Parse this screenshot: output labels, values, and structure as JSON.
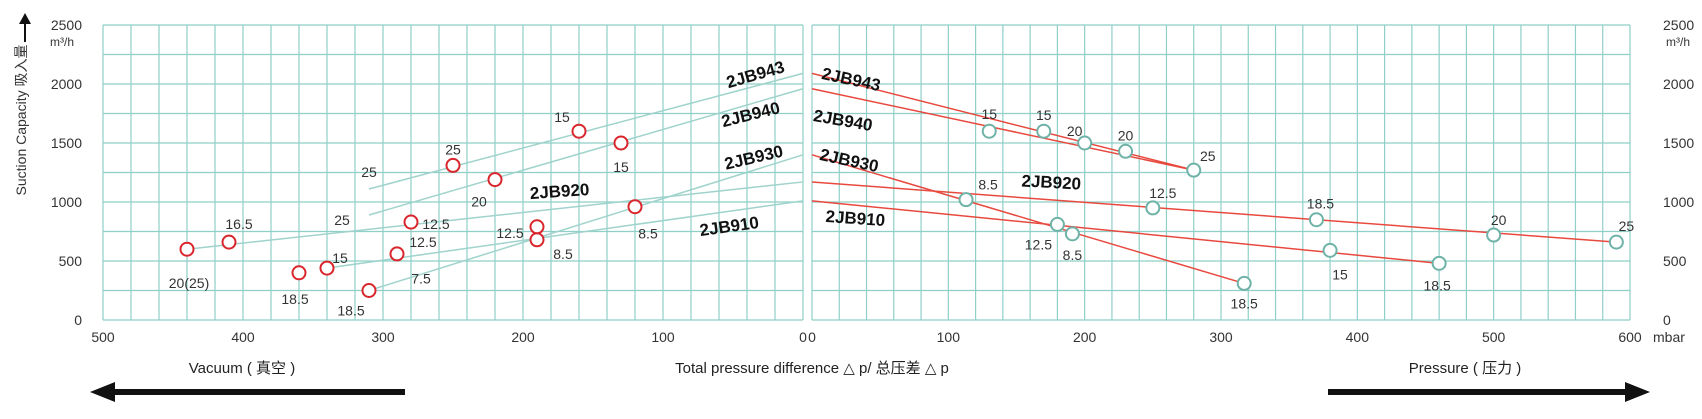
{
  "chart_data": {
    "type": "line",
    "colors": {
      "grid": "#8fcfc8",
      "vacuum_line": "#9fd3cc",
      "pressure_line": "#e8493f",
      "vacuum_marker": "#d9262c",
      "pressure_marker": "#6fb3a8",
      "arrow": "#111111"
    },
    "y_axis": {
      "label": "Suction Capacity 吸入量",
      "unit": "m³/h",
      "range": [
        0,
        2500
      ],
      "ticks": [
        "0",
        "500",
        "1000",
        "1500",
        "2000",
        "2500"
      ]
    },
    "x_axis_label": "Total pressure difference △ p/ 总压差 △ p",
    "vacuum_panel": {
      "label": "Vacuum ( 真空 )",
      "range": [
        500,
        0
      ],
      "ticks": [
        "500",
        "400",
        "300",
        "200",
        "100",
        "0"
      ],
      "series": [
        {
          "name": "2JB943",
          "x": [
            310,
            0
          ],
          "y": [
            1110,
            2090
          ],
          "markers": [
            {
              "x": 250,
              "y": 1310,
              "label": "25"
            },
            {
              "x": 160,
              "y": 1600,
              "label": "15"
            }
          ],
          "labels": [
            {
              "x": 310,
              "y": 1110,
              "label": "25"
            }
          ]
        },
        {
          "name": "2JB940",
          "x": [
            310,
            0
          ],
          "y": [
            890,
            1960
          ],
          "markers": [
            {
              "x": 220,
              "y": 1190,
              "label": "20"
            },
            {
              "x": 130,
              "y": 1500,
              "label": "15"
            }
          ],
          "labels": [
            {
              "x": 310,
              "y": 890,
              "label": "25"
            }
          ]
        },
        {
          "name": "2JB930",
          "x": [
            310,
            0
          ],
          "y": [
            250,
            1400
          ],
          "markers": [
            {
              "x": 310,
              "y": 250,
              "label": "18.5"
            },
            {
              "x": 190,
              "y": 680,
              "label": "8.5"
            },
            {
              "x": 120,
              "y": 960,
              "label": "8.5"
            }
          ],
          "labels": [
            {
              "x": 290,
              "y": 420,
              "label": "7.5"
            }
          ]
        },
        {
          "name": "2JB920",
          "x": [
            440,
            0
          ],
          "y": [
            600,
            1170
          ],
          "markers": [
            {
              "x": 440,
              "y": 600,
              "label": "20(25)"
            },
            {
              "x": 410,
              "y": 660,
              "label": "16.5"
            },
            {
              "x": 280,
              "y": 830,
              "label": "12.5"
            }
          ],
          "labels": []
        },
        {
          "name": "2JB910",
          "x": [
            340,
            0
          ],
          "y": [
            440,
            1010
          ],
          "markers": [
            {
              "x": 360,
              "y": 400,
              "label": "18.5"
            },
            {
              "x": 340,
              "y": 440,
              "label": "15"
            },
            {
              "x": 290,
              "y": 560,
              "label": "12.5"
            },
            {
              "x": 190,
              "y": 790,
              "label": "12.5"
            }
          ],
          "labels": []
        }
      ]
    },
    "pressure_panel": {
      "label": "Pressure ( 压力 )",
      "unit": "mbar",
      "range": [
        0,
        600
      ],
      "ticks": [
        "0",
        "100",
        "200",
        "300",
        "400",
        "500",
        "600"
      ],
      "series": [
        {
          "name": "2JB943",
          "x": [
            0,
            280
          ],
          "y": [
            2090,
            1270
          ],
          "markers": [
            {
              "x": 130,
              "y": 1600,
              "label": "15"
            },
            {
              "x": 200,
              "y": 1500,
              "label": "20"
            },
            {
              "x": 280,
              "y": 1270,
              "label": "25"
            }
          ]
        },
        {
          "name": "2JB940",
          "x": [
            0,
            280
          ],
          "y": [
            1960,
            1270
          ],
          "markers": [
            {
              "x": 170,
              "y": 1600,
              "label": "15"
            },
            {
              "x": 230,
              "y": 1430,
              "label": "20"
            }
          ]
        },
        {
          "name": "2JB930",
          "x": [
            0,
            317
          ],
          "y": [
            1400,
            310
          ],
          "markers": [
            {
              "x": 180,
              "y": 810,
              "label": "12.5"
            },
            {
              "x": 317,
              "y": 310,
              "label": "18.5"
            }
          ]
        },
        {
          "name": "2JB920",
          "x": [
            0,
            590
          ],
          "y": [
            1170,
            660
          ],
          "markers": [
            {
              "x": 113,
              "y": 1020,
              "label": "8.5"
            },
            {
              "x": 250,
              "y": 950,
              "label": "12.5"
            },
            {
              "x": 370,
              "y": 850,
              "label": "18.5"
            },
            {
              "x": 500,
              "y": 720,
              "label": "20"
            },
            {
              "x": 590,
              "y": 660,
              "label": "25"
            }
          ]
        },
        {
          "name": "2JB910",
          "x": [
            0,
            460
          ],
          "y": [
            1010,
            480
          ],
          "markers": [
            {
              "x": 191,
              "y": 730,
              "label": "8.5"
            },
            {
              "x": 380,
              "y": 590,
              "label": "15"
            },
            {
              "x": 460,
              "y": 480,
              "label": "18.5"
            }
          ]
        }
      ]
    }
  }
}
